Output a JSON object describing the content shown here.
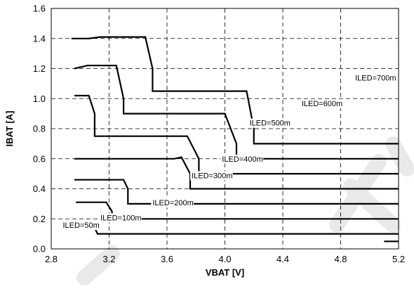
{
  "chart_data": {
    "type": "line",
    "xlabel": "VBAT [V]",
    "ylabel": "IBAT [A]",
    "xlim": [
      2.8,
      5.2
    ],
    "ylim": [
      0.0,
      1.6
    ],
    "xticks": [
      "2.8",
      "3.2",
      "3.6",
      "4.0",
      "4.4",
      "4.8",
      "5.2"
    ],
    "yticks": [
      "0.0",
      "0.2",
      "0.4",
      "0.6",
      "0.8",
      "1.0",
      "1.2",
      "1.4",
      "1.6"
    ],
    "grid": true,
    "series": [
      {
        "name": "ILED=50m",
        "x": [
          2.98,
          3.06,
          3.06,
          3.1,
          3.12,
          3.12,
          5.2
        ],
        "y": [
          0.16,
          0.16,
          0.14,
          0.14,
          0.1,
          0.1,
          0.1
        ]
      },
      {
        "name": "ILED=100m",
        "x": [
          2.97,
          3.18,
          3.22,
          3.22,
          5.2
        ],
        "y": [
          0.31,
          0.31,
          0.25,
          0.2,
          0.2
        ]
      },
      {
        "name": "ILED=200m",
        "x": [
          2.96,
          3.3,
          3.33,
          3.33,
          5.2
        ],
        "y": [
          0.46,
          0.46,
          0.4,
          0.3,
          0.3
        ]
      },
      {
        "name": "ILED=300m",
        "x": [
          2.96,
          3.65,
          3.7,
          3.76,
          3.76,
          5.2
        ],
        "y": [
          0.6,
          0.6,
          0.61,
          0.5,
          0.4,
          0.4
        ]
      },
      {
        "name": "ILED=400m",
        "x": [
          2.96,
          3.06,
          3.1,
          3.1,
          3.74,
          3.82,
          3.82,
          5.2
        ],
        "y": [
          1.02,
          1.02,
          0.9,
          0.75,
          0.75,
          0.6,
          0.5,
          0.5
        ]
      },
      {
        "name": "ILED=500m",
        "x": [
          2.96,
          3.05,
          3.25,
          3.3,
          3.3,
          4.0,
          4.08,
          4.08,
          5.2
        ],
        "y": [
          1.2,
          1.22,
          1.22,
          1.0,
          0.9,
          0.9,
          0.7,
          0.6,
          0.6
        ]
      },
      {
        "name": "ILED=600m",
        "x": [
          2.94,
          3.06,
          3.14,
          3.3,
          3.45,
          3.5,
          3.5,
          4.15,
          4.2,
          4.2,
          5.15,
          5.2
        ],
        "y": [
          1.4,
          1.4,
          1.41,
          1.41,
          1.41,
          1.2,
          1.05,
          1.05,
          0.8,
          0.7,
          0.7,
          0.7
        ]
      },
      {
        "name": "ILED=700m",
        "x": [
          5.1,
          5.2
        ],
        "y": [
          0.05,
          0.05
        ]
      }
    ],
    "labels": [
      {
        "text": "ILED=50m",
        "x": 2.88,
        "y": 0.14,
        "series": "ILED=50m"
      },
      {
        "text": "ILED=100m",
        "x": 3.14,
        "y": 0.19,
        "series": "ILED=100m"
      },
      {
        "text": "ILED=200m",
        "x": 3.5,
        "y": 0.29,
        "series": "ILED=200m"
      },
      {
        "text": "ILED=300m",
        "x": 3.77,
        "y": 0.47,
        "series": "ILED=300m"
      },
      {
        "text": "ILED=400m",
        "x": 3.98,
        "y": 0.58,
        "series": "ILED=400m"
      },
      {
        "text": "ILED=500m",
        "x": 4.17,
        "y": 0.82,
        "series": "ILED=500m"
      },
      {
        "text": "ILED=600m",
        "x": 4.53,
        "y": 0.95,
        "series": "ILED=600m"
      },
      {
        "text": "ILED=700m",
        "x": 4.9,
        "y": 1.12,
        "series": "ILED=700m"
      }
    ]
  }
}
